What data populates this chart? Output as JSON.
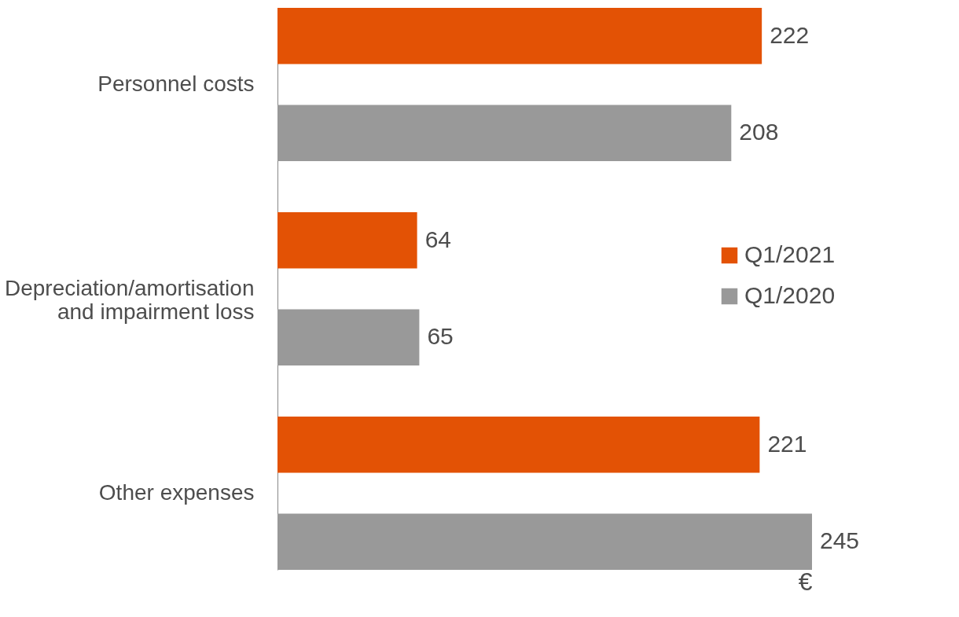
{
  "chart_data": {
    "type": "bar",
    "orientation": "horizontal",
    "categories": [
      "Personnel costs",
      "Depreciation/amortisation\nand impairment loss",
      "Other expenses"
    ],
    "series": [
      {
        "name": "Q1/2021",
        "color": "#e35205",
        "values": [
          222,
          64,
          221
        ]
      },
      {
        "name": "Q1/2020",
        "color": "#999999",
        "values": [
          208,
          65,
          245
        ]
      }
    ],
    "xlabel": "€",
    "data_labels": true,
    "legend": "right",
    "grid": false,
    "tick_labels": "y"
  }
}
